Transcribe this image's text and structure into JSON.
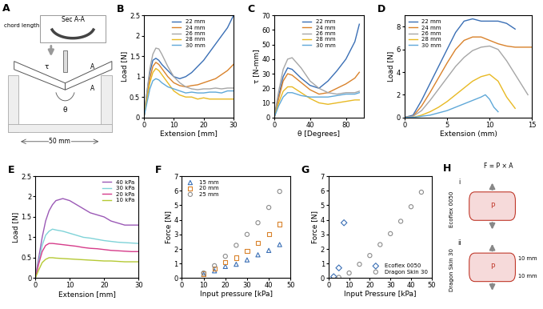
{
  "chart_data": [
    {
      "panel": "B",
      "type": "line",
      "xlabel": "Extension [mm]",
      "ylabel": "Load [N]",
      "xlim": [
        0,
        30
      ],
      "ylim": [
        0,
        2.5
      ],
      "xticks": [
        0,
        10,
        20,
        30
      ],
      "yticks": [
        0,
        0.5,
        1,
        1.5,
        2,
        2.5
      ],
      "legend": "upper center",
      "series": [
        {
          "name": "22 mm",
          "color": "#3a6fb5",
          "x": [
            0,
            1,
            2,
            3,
            4,
            5,
            6,
            8,
            10,
            12,
            14,
            16,
            18,
            20,
            22,
            24,
            26,
            28,
            30
          ],
          "values": [
            0,
            0.6,
            1.1,
            1.4,
            1.45,
            1.4,
            1.3,
            1.15,
            1.0,
            0.95,
            1.0,
            1.1,
            1.25,
            1.4,
            1.6,
            1.8,
            2.0,
            2.2,
            2.5
          ]
        },
        {
          "name": "24 mm",
          "color": "#d9822b",
          "x": [
            0,
            1,
            2,
            3,
            4,
            5,
            6,
            8,
            10,
            12,
            14,
            16,
            18,
            20,
            22,
            24,
            26,
            28,
            30
          ],
          "values": [
            0,
            0.5,
            0.95,
            1.25,
            1.35,
            1.3,
            1.2,
            1.0,
            0.85,
            0.78,
            0.75,
            0.78,
            0.8,
            0.85,
            0.9,
            0.95,
            1.05,
            1.15,
            1.3
          ]
        },
        {
          "name": "26 mm",
          "color": "#a6a6a6",
          "x": [
            0,
            1,
            2,
            3,
            4,
            5,
            6,
            8,
            10,
            12,
            14,
            16,
            18,
            20,
            22,
            24,
            26,
            28,
            30
          ],
          "values": [
            0,
            0.6,
            1.2,
            1.55,
            1.7,
            1.68,
            1.55,
            1.25,
            1.0,
            0.85,
            0.75,
            0.7,
            0.68,
            0.7,
            0.7,
            0.72,
            0.7,
            0.72,
            0.72
          ]
        },
        {
          "name": "28 mm",
          "color": "#e8b923",
          "x": [
            0,
            1,
            2,
            3,
            4,
            5,
            6,
            8,
            10,
            12,
            14,
            16,
            18,
            20,
            22,
            24,
            26,
            28,
            30
          ],
          "values": [
            0,
            0.45,
            0.85,
            1.1,
            1.2,
            1.15,
            1.05,
            0.85,
            0.65,
            0.55,
            0.5,
            0.5,
            0.45,
            0.48,
            0.45,
            0.45,
            0.45,
            0.45,
            0.45
          ]
        },
        {
          "name": "30 mm",
          "color": "#5fa8d8",
          "x": [
            0,
            1,
            2,
            3,
            4,
            5,
            6,
            8,
            10,
            12,
            14,
            16,
            18,
            20,
            22,
            24,
            26,
            28,
            30
          ],
          "values": [
            0,
            0.35,
            0.7,
            0.9,
            0.95,
            0.92,
            0.85,
            0.75,
            0.7,
            0.65,
            0.6,
            0.62,
            0.6,
            0.6,
            0.62,
            0.62,
            0.6,
            0.65,
            0.65
          ]
        }
      ]
    },
    {
      "panel": "C",
      "type": "line",
      "xlabel": "θ [Degrees]",
      "ylabel": "τ [N-mm]",
      "xlim": [
        0,
        100
      ],
      "ylim": [
        0,
        70
      ],
      "xticks": [
        0,
        40,
        80
      ],
      "yticks": [
        0,
        10,
        20,
        30,
        40,
        50,
        60,
        70
      ],
      "legend": "upper center",
      "series": [
        {
          "name": "22 mm",
          "color": "#3a6fb5",
          "x": [
            0,
            5,
            10,
            15,
            20,
            30,
            40,
            50,
            60,
            70,
            80,
            90,
            95
          ],
          "values": [
            0,
            15,
            28,
            34,
            33,
            27,
            22,
            20,
            25,
            32,
            40,
            52,
            64
          ]
        },
        {
          "name": "24 mm",
          "color": "#d9822b",
          "x": [
            0,
            5,
            10,
            15,
            20,
            30,
            40,
            50,
            60,
            70,
            80,
            90,
            95
          ],
          "values": [
            0,
            13,
            25,
            30,
            29,
            24,
            19,
            16,
            17,
            20,
            23,
            27,
            31
          ]
        },
        {
          "name": "26 mm",
          "color": "#a6a6a6",
          "x": [
            0,
            5,
            10,
            15,
            20,
            30,
            40,
            50,
            60,
            70,
            80,
            90,
            95
          ],
          "values": [
            0,
            18,
            33,
            40,
            41,
            34,
            25,
            20,
            17,
            16,
            17,
            17,
            18
          ]
        },
        {
          "name": "28 mm",
          "color": "#e8b923",
          "x": [
            0,
            5,
            10,
            15,
            20,
            30,
            40,
            50,
            60,
            70,
            80,
            90,
            95
          ],
          "values": [
            0,
            10,
            18,
            21,
            21,
            17,
            13,
            10,
            9,
            10,
            11,
            12,
            12
          ]
        },
        {
          "name": "30 mm",
          "color": "#5fa8d8",
          "x": [
            0,
            5,
            10,
            15,
            20,
            30,
            40,
            50,
            60,
            70,
            80,
            90,
            95
          ],
          "values": [
            0,
            8,
            14,
            17,
            17,
            15,
            14,
            14,
            14,
            15,
            16,
            16,
            17
          ]
        }
      ]
    },
    {
      "panel": "D",
      "type": "line",
      "xlabel": "Extension (mm)",
      "ylabel": "Load [N]",
      "xlim": [
        0,
        15
      ],
      "ylim": [
        0,
        9
      ],
      "xticks": [
        0,
        5,
        10,
        15
      ],
      "yticks": [
        0,
        2,
        4,
        6,
        8
      ],
      "legend": "upper left",
      "series": [
        {
          "name": "22 mm",
          "color": "#3a6fb5",
          "x": [
            0,
            1,
            2,
            3,
            4,
            5,
            6,
            7,
            8,
            9,
            10,
            11,
            12,
            13
          ],
          "values": [
            0,
            0.2,
            1.5,
            3,
            4.5,
            6,
            7.5,
            8.5,
            8.7,
            8.5,
            8.5,
            8.5,
            8.3,
            7.8
          ]
        },
        {
          "name": "24 mm",
          "color": "#d9822b",
          "x": [
            0,
            1,
            2,
            3,
            4,
            5,
            6,
            7,
            8,
            9,
            10,
            11,
            12,
            13,
            14,
            15
          ],
          "values": [
            0,
            0.1,
            1.0,
            2.2,
            3.5,
            4.8,
            6,
            6.8,
            7.1,
            7.1,
            6.8,
            6.5,
            6.3,
            6.2,
            6.2,
            6.2
          ]
        },
        {
          "name": "26 mm",
          "color": "#a6a6a6",
          "x": [
            0,
            1,
            2,
            3,
            4,
            5,
            6,
            7,
            8,
            9,
            10,
            11,
            12,
            13,
            14,
            14.5
          ],
          "values": [
            0,
            0.1,
            0.6,
            1.5,
            2.5,
            3.5,
            4.5,
            5.3,
            5.9,
            6.2,
            6.3,
            6.0,
            5.0,
            3.8,
            2.6,
            2.0
          ]
        },
        {
          "name": "28 mm",
          "color": "#e8b923",
          "x": [
            0,
            1,
            2,
            3,
            4,
            5,
            6,
            7,
            8,
            9,
            10,
            11,
            12,
            13
          ],
          "values": [
            0,
            0,
            0.2,
            0.5,
            0.9,
            1.4,
            2.0,
            2.6,
            3.2,
            3.6,
            3.8,
            3.2,
            1.8,
            0.8
          ]
        },
        {
          "name": "30 mm",
          "color": "#5fa8d8",
          "x": [
            0,
            1,
            2,
            3,
            4,
            5,
            6,
            7,
            8,
            9,
            9.5,
            10,
            10.5,
            11
          ],
          "values": [
            0,
            0,
            0.1,
            0.2,
            0.4,
            0.6,
            0.9,
            1.2,
            1.5,
            1.8,
            2.0,
            1.6,
            0.9,
            0.5
          ]
        }
      ]
    },
    {
      "panel": "E",
      "type": "line",
      "xlabel": "Extension [mm]",
      "ylabel": "Load [N]",
      "xlim": [
        0,
        30
      ],
      "ylim": [
        0,
        2.5
      ],
      "xticks": [
        0,
        10,
        20,
        30
      ],
      "yticks": [
        0,
        0.5,
        1,
        1.5,
        2,
        2.5
      ],
      "legend": "upper right",
      "series": [
        {
          "name": "40 kPa",
          "color": "#9b59b6",
          "x": [
            0,
            1,
            2,
            3,
            4,
            5,
            6,
            8,
            10,
            12,
            14,
            16,
            18,
            20,
            22,
            24,
            26,
            28,
            30
          ],
          "values": [
            0,
            0.5,
            1.0,
            1.4,
            1.65,
            1.8,
            1.9,
            1.95,
            1.9,
            1.8,
            1.7,
            1.6,
            1.55,
            1.5,
            1.4,
            1.35,
            1.3,
            1.3,
            1.3
          ]
        },
        {
          "name": "30 kPa",
          "color": "#7fd3d8",
          "x": [
            0,
            1,
            2,
            3,
            4,
            5,
            6,
            8,
            10,
            12,
            14,
            16,
            18,
            20,
            22,
            24,
            26,
            28,
            30
          ],
          "values": [
            0,
            0.4,
            0.8,
            1.05,
            1.15,
            1.2,
            1.18,
            1.15,
            1.1,
            1.05,
            1.0,
            0.98,
            0.95,
            0.92,
            0.9,
            0.88,
            0.87,
            0.86,
            0.85
          ]
        },
        {
          "name": "20 kPa",
          "color": "#d63c8a",
          "x": [
            0,
            1,
            2,
            3,
            4,
            5,
            6,
            8,
            10,
            12,
            14,
            16,
            18,
            20,
            22,
            24,
            26,
            28,
            30
          ],
          "values": [
            0,
            0.35,
            0.65,
            0.8,
            0.85,
            0.85,
            0.84,
            0.82,
            0.8,
            0.78,
            0.75,
            0.73,
            0.72,
            0.7,
            0.68,
            0.67,
            0.66,
            0.65,
            0.65
          ]
        },
        {
          "name": "10 kPa",
          "color": "#b5c934",
          "x": [
            0,
            1,
            2,
            3,
            4,
            5,
            6,
            8,
            10,
            12,
            14,
            16,
            18,
            20,
            22,
            24,
            26,
            28,
            30
          ],
          "values": [
            0,
            0.2,
            0.38,
            0.46,
            0.5,
            0.5,
            0.49,
            0.48,
            0.47,
            0.46,
            0.45,
            0.44,
            0.43,
            0.42,
            0.42,
            0.41,
            0.4,
            0.4,
            0.4
          ]
        }
      ]
    },
    {
      "panel": "F",
      "type": "scatter",
      "xlabel": "Input pressure [kPa]",
      "ylabel": "Force [N]",
      "xlim": [
        0,
        50
      ],
      "ylim": [
        0,
        7
      ],
      "xticks": [
        0,
        10,
        20,
        30,
        40,
        50
      ],
      "yticks": [
        0,
        1,
        2,
        3,
        4,
        5,
        6,
        7
      ],
      "legend": "upper left",
      "series": [
        {
          "name": "15 mm",
          "color": "#3a6fb5",
          "marker": "triangle",
          "x": [
            10,
            15,
            20,
            25,
            30,
            35,
            40,
            45
          ],
          "values": [
            0.25,
            0.5,
            0.8,
            0.95,
            1.25,
            1.6,
            1.9,
            2.3
          ]
        },
        {
          "name": "20 mm",
          "color": "#d9822b",
          "marker": "square",
          "x": [
            10,
            15,
            20,
            25,
            30,
            35,
            40,
            45
          ],
          "values": [
            0.3,
            0.65,
            1.1,
            1.4,
            1.85,
            2.4,
            3.0,
            3.7
          ]
        },
        {
          "name": "25 mm",
          "color": "#8c8c8c",
          "marker": "circle",
          "x": [
            10,
            15,
            20,
            25,
            30,
            35,
            40,
            45
          ],
          "values": [
            0.35,
            0.85,
            1.5,
            2.25,
            3.0,
            3.8,
            4.85,
            5.95
          ]
        }
      ]
    },
    {
      "panel": "G",
      "type": "scatter",
      "xlabel": "Input Pressure [kPa]",
      "ylabel": "Force [N]",
      "xlim": [
        0,
        50
      ],
      "ylim": [
        0,
        7
      ],
      "xticks": [
        0,
        10,
        20,
        30,
        40,
        50
      ],
      "yticks": [
        0,
        1,
        2,
        3,
        4,
        5,
        6,
        7
      ],
      "legend": "lower right",
      "series": [
        {
          "name": "Ecoflex 0050",
          "color": "#3a6fb5",
          "marker": "diamond",
          "x": [
            2.5,
            5,
            7.5
          ],
          "values": [
            0.1,
            0.7,
            3.8
          ]
        },
        {
          "name": "Dragon Skin 30",
          "color": "#8c8c8c",
          "marker": "circle",
          "x": [
            5,
            10,
            15,
            20,
            25,
            30,
            35,
            40,
            45
          ],
          "values": [
            0.05,
            0.35,
            0.95,
            1.55,
            2.3,
            3.05,
            3.9,
            4.9,
            5.9
          ]
        }
      ]
    }
  ],
  "diagrams": {
    "A": {
      "panel": "A",
      "section_title": "Sec A-A",
      "chord": "chord length",
      "section_marks": [
        "A",
        "A"
      ],
      "torque": "τ",
      "angle": "θ",
      "width": "50 mm"
    },
    "H": {
      "panel": "H",
      "formula": "F = P × A",
      "rows": [
        {
          "numeral": "i",
          "material": "Ecoflex 0050",
          "pressure": "P"
        },
        {
          "numeral": "ii",
          "material": "Dragon Skin 30",
          "pressure": "P",
          "dims": [
            "10 mm",
            "10 mm"
          ]
        }
      ]
    }
  }
}
